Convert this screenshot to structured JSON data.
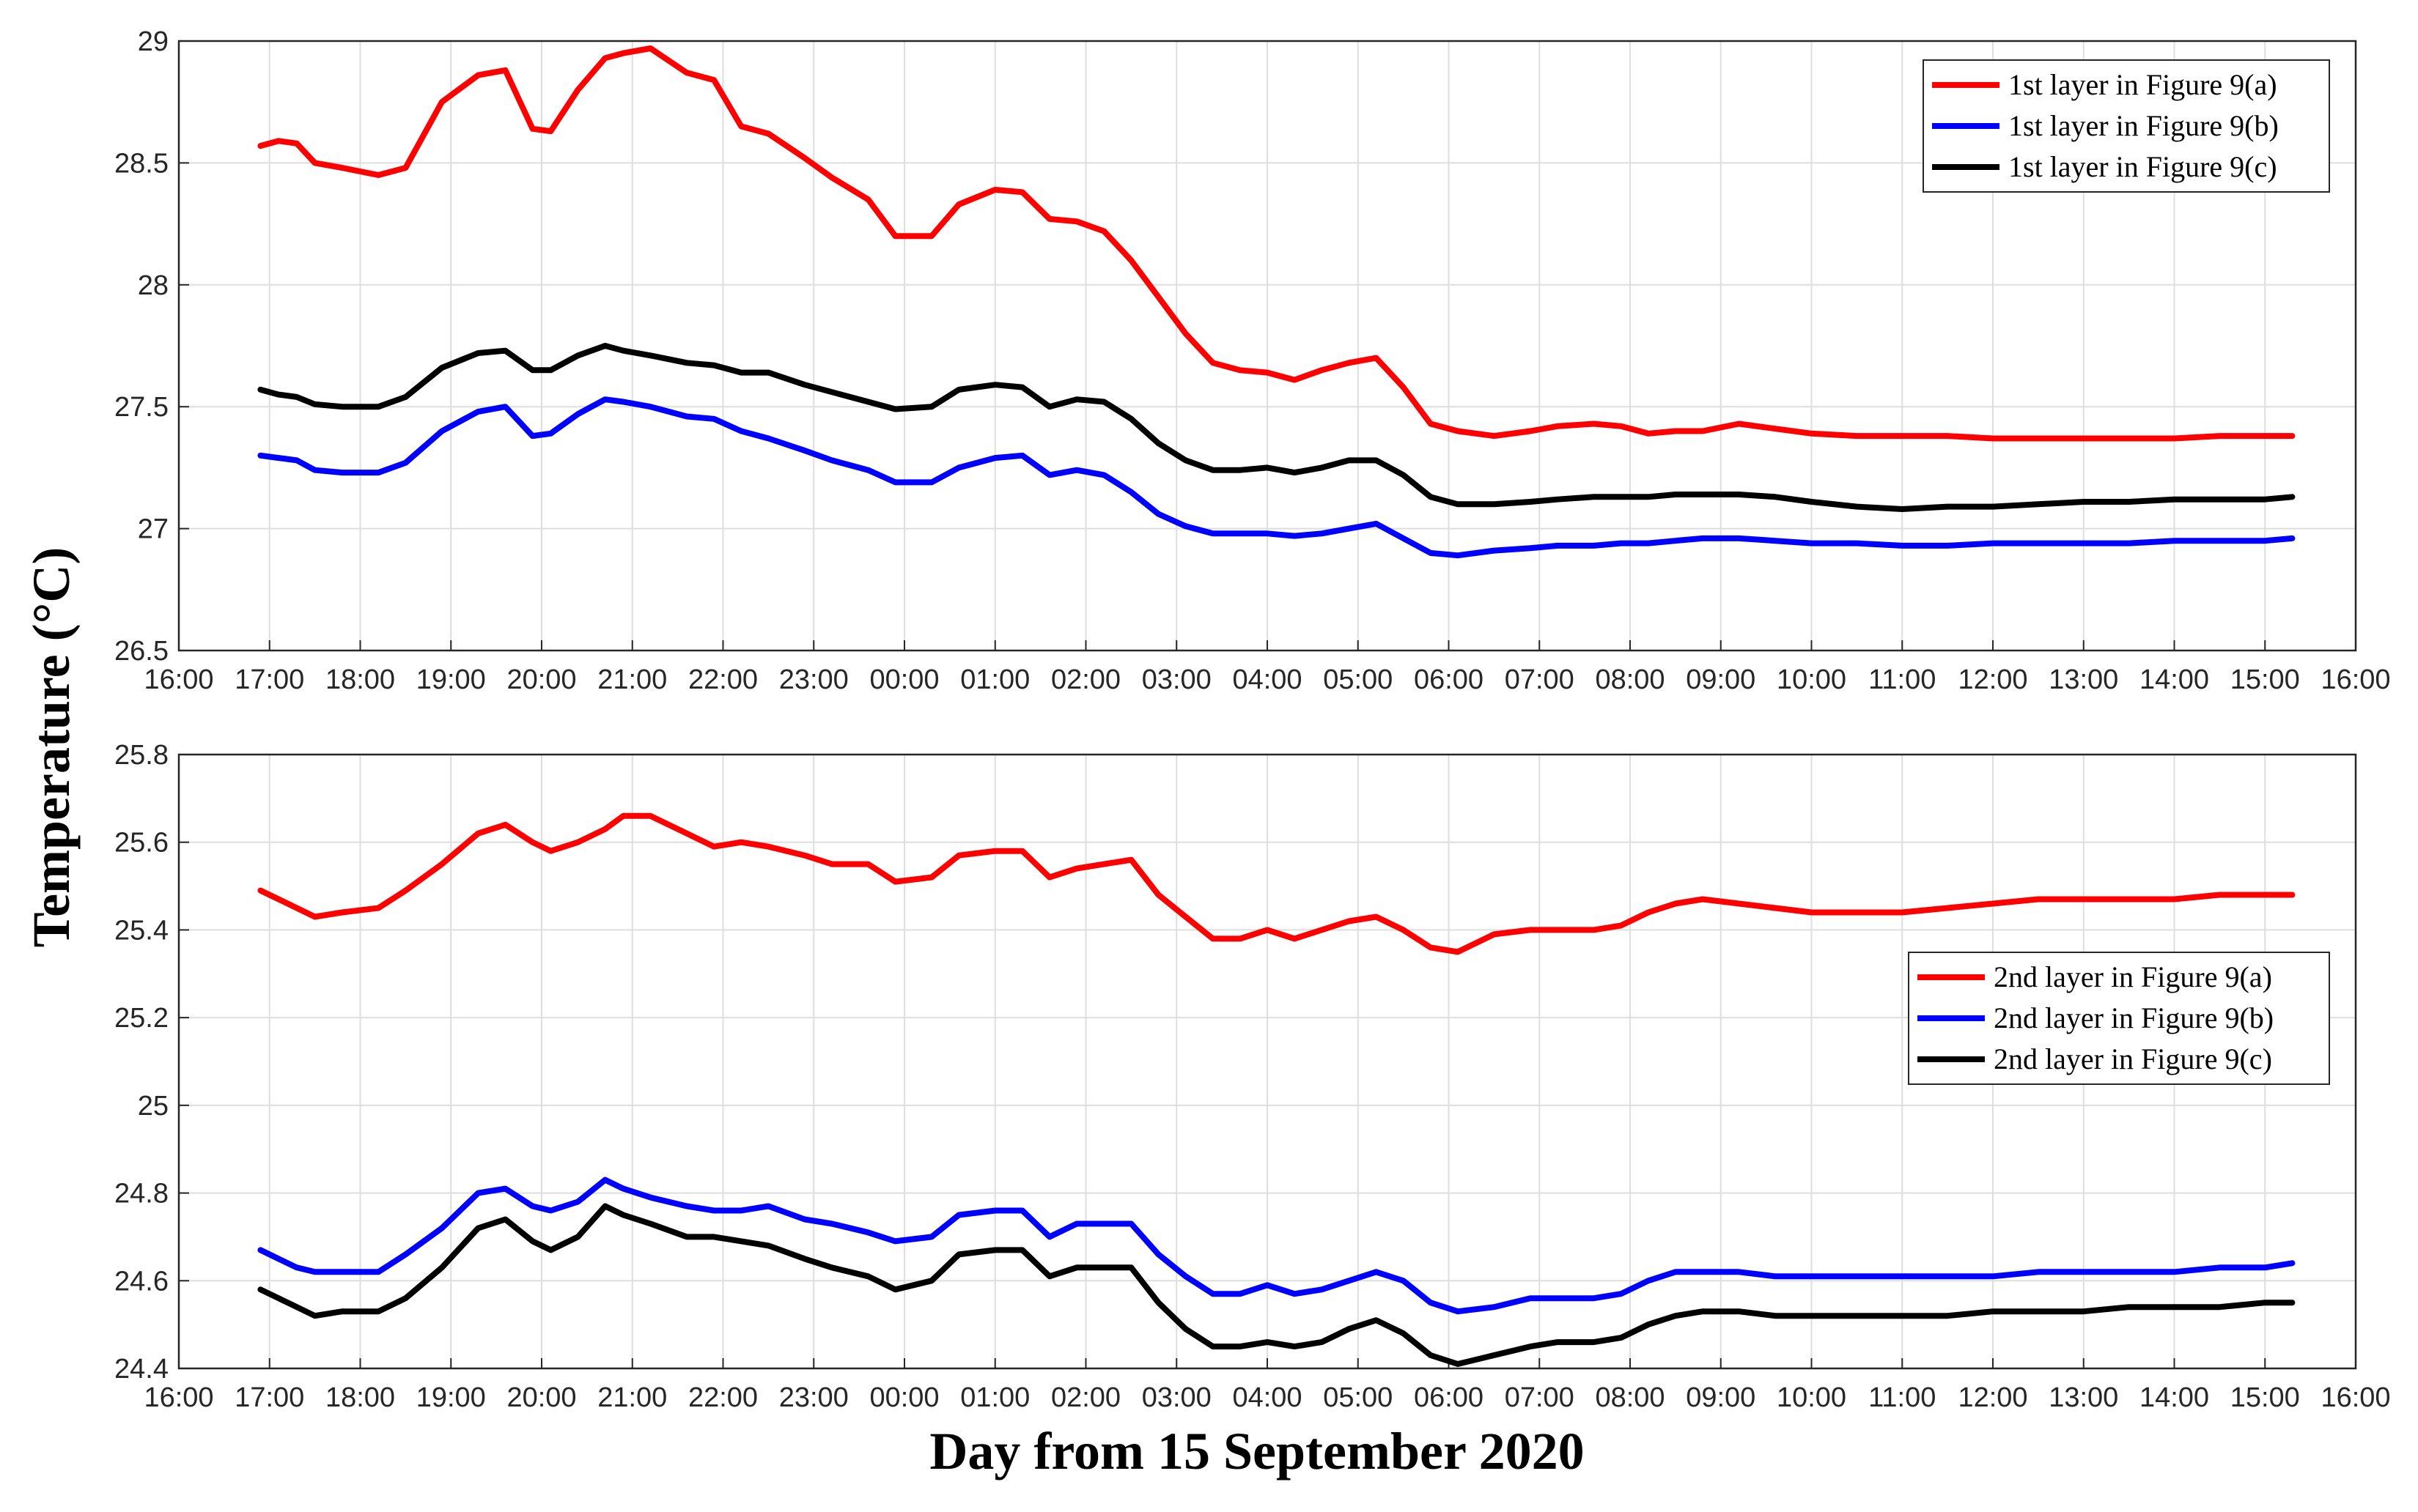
{
  "ylabel": "Temperature (°C)",
  "xlabel": "Day from 15 September 2020",
  "chart_data": [
    {
      "type": "line",
      "name": "top-panel",
      "ylim": [
        26.5,
        29
      ],
      "yticks": [
        26.5,
        27,
        27.5,
        28,
        28.5,
        29
      ],
      "ytick_labels": [
        "26.5",
        "27",
        "27.5",
        "28",
        "28.5",
        "29"
      ],
      "xlim": [
        0,
        24
      ],
      "xtick_labels": [
        "16:00",
        "17:00",
        "18:00",
        "19:00",
        "20:00",
        "21:00",
        "22:00",
        "23:00",
        "00:00",
        "01:00",
        "02:00",
        "03:00",
        "04:00",
        "05:00",
        "06:00",
        "07:00",
        "08:00",
        "09:00",
        "10:00",
        "11:00",
        "12:00",
        "13:00",
        "14:00",
        "15:00",
        "16:00"
      ],
      "grid": true,
      "legend_position": "top-right",
      "x": [
        0.9,
        1.1,
        1.3,
        1.5,
        1.8,
        2.2,
        2.5,
        2.9,
        3.3,
        3.6,
        3.9,
        4.1,
        4.4,
        4.7,
        4.9,
        5.2,
        5.6,
        5.9,
        6.2,
        6.5,
        6.9,
        7.2,
        7.6,
        7.9,
        8.3,
        8.6,
        9.0,
        9.3,
        9.6,
        9.9,
        10.2,
        10.5,
        10.8,
        11.1,
        11.4,
        11.7,
        12.0,
        12.3,
        12.6,
        12.9,
        13.2,
        13.5,
        13.8,
        14.1,
        14.5,
        14.9,
        15.2,
        15.6,
        15.9,
        16.2,
        16.5,
        16.8,
        17.2,
        17.6,
        18.0,
        18.5,
        19.0,
        19.5,
        20.0,
        20.5,
        21.0,
        21.5,
        22.0,
        22.5,
        23.0,
        23.3
      ],
      "series": [
        {
          "name": "1st layer in Figure 9(a)",
          "color": "#ff0000",
          "values": [
            28.57,
            28.59,
            28.58,
            28.5,
            28.48,
            28.45,
            28.48,
            28.75,
            28.86,
            28.88,
            28.64,
            28.63,
            28.8,
            28.93,
            28.95,
            28.97,
            28.87,
            28.84,
            28.65,
            28.62,
            28.52,
            28.44,
            28.35,
            28.2,
            28.2,
            28.33,
            28.39,
            28.38,
            28.27,
            28.26,
            28.22,
            28.1,
            27.95,
            27.8,
            27.68,
            27.65,
            27.64,
            27.61,
            27.65,
            27.68,
            27.7,
            27.58,
            27.43,
            27.4,
            27.38,
            27.4,
            27.42,
            27.43,
            27.42,
            27.39,
            27.4,
            27.4,
            27.43,
            27.41,
            27.39,
            27.38,
            27.38,
            27.38,
            27.37,
            27.37,
            27.37,
            27.37,
            27.37,
            27.38,
            27.38,
            27.38
          ]
        },
        {
          "name": "1st layer in Figure 9(b)",
          "color": "#0000ff",
          "values": [
            27.3,
            27.29,
            27.28,
            27.24,
            27.23,
            27.23,
            27.27,
            27.4,
            27.48,
            27.5,
            27.38,
            27.39,
            27.47,
            27.53,
            27.52,
            27.5,
            27.46,
            27.45,
            27.4,
            27.37,
            27.32,
            27.28,
            27.24,
            27.19,
            27.19,
            27.25,
            27.29,
            27.3,
            27.22,
            27.24,
            27.22,
            27.15,
            27.06,
            27.01,
            26.98,
            26.98,
            26.98,
            26.97,
            26.98,
            27.0,
            27.02,
            26.96,
            26.9,
            26.89,
            26.91,
            26.92,
            26.93,
            26.93,
            26.94,
            26.94,
            26.95,
            26.96,
            26.96,
            26.95,
            26.94,
            26.94,
            26.93,
            26.93,
            26.94,
            26.94,
            26.94,
            26.94,
            26.95,
            26.95,
            26.95,
            26.96
          ]
        },
        {
          "name": "1st layer in Figure 9(c)",
          "color": "#000000",
          "values": [
            27.57,
            27.55,
            27.54,
            27.51,
            27.5,
            27.5,
            27.54,
            27.66,
            27.72,
            27.73,
            27.65,
            27.65,
            27.71,
            27.75,
            27.73,
            27.71,
            27.68,
            27.67,
            27.64,
            27.64,
            27.59,
            27.56,
            27.52,
            27.49,
            27.5,
            27.57,
            27.59,
            27.58,
            27.5,
            27.53,
            27.52,
            27.45,
            27.35,
            27.28,
            27.24,
            27.24,
            27.25,
            27.23,
            27.25,
            27.28,
            27.28,
            27.22,
            27.13,
            27.1,
            27.1,
            27.11,
            27.12,
            27.13,
            27.13,
            27.13,
            27.14,
            27.14,
            27.14,
            27.13,
            27.11,
            27.09,
            27.08,
            27.09,
            27.09,
            27.1,
            27.11,
            27.11,
            27.12,
            27.12,
            27.12,
            27.13
          ]
        }
      ]
    },
    {
      "type": "line",
      "name": "bottom-panel",
      "ylim": [
        24.4,
        25.8
      ],
      "yticks": [
        24.4,
        24.6,
        24.8,
        25,
        25.2,
        25.4,
        25.6,
        25.8
      ],
      "ytick_labels": [
        "24.4",
        "24.6",
        "24.8",
        "25",
        "25.2",
        "25.4",
        "25.6",
        "25.8"
      ],
      "xlim": [
        0,
        24
      ],
      "xtick_labels": [
        "16:00",
        "17:00",
        "18:00",
        "19:00",
        "20:00",
        "21:00",
        "22:00",
        "23:00",
        "00:00",
        "01:00",
        "02:00",
        "03:00",
        "04:00",
        "05:00",
        "06:00",
        "07:00",
        "08:00",
        "09:00",
        "10:00",
        "11:00",
        "12:00",
        "13:00",
        "14:00",
        "15:00",
        "16:00"
      ],
      "grid": true,
      "legend_position": "right",
      "x": [
        0.9,
        1.1,
        1.3,
        1.5,
        1.8,
        2.2,
        2.5,
        2.9,
        3.3,
        3.6,
        3.9,
        4.1,
        4.4,
        4.7,
        4.9,
        5.2,
        5.6,
        5.9,
        6.2,
        6.5,
        6.9,
        7.2,
        7.6,
        7.9,
        8.3,
        8.6,
        9.0,
        9.3,
        9.6,
        9.9,
        10.2,
        10.5,
        10.8,
        11.1,
        11.4,
        11.7,
        12.0,
        12.3,
        12.6,
        12.9,
        13.2,
        13.5,
        13.8,
        14.1,
        14.5,
        14.9,
        15.2,
        15.6,
        15.9,
        16.2,
        16.5,
        16.8,
        17.2,
        17.6,
        18.0,
        18.5,
        19.0,
        19.5,
        20.0,
        20.5,
        21.0,
        21.5,
        22.0,
        22.5,
        23.0,
        23.3
      ],
      "series": [
        {
          "name": "2nd layer in Figure 9(a)",
          "color": "#ff0000",
          "values": [
            25.49,
            25.47,
            25.45,
            25.43,
            25.44,
            25.45,
            25.49,
            25.55,
            25.62,
            25.64,
            25.6,
            25.58,
            25.6,
            25.63,
            25.66,
            25.66,
            25.62,
            25.59,
            25.6,
            25.59,
            25.57,
            25.55,
            25.55,
            25.51,
            25.52,
            25.57,
            25.58,
            25.58,
            25.52,
            25.54,
            25.55,
            25.56,
            25.48,
            25.43,
            25.38,
            25.38,
            25.4,
            25.38,
            25.4,
            25.42,
            25.43,
            25.4,
            25.36,
            25.35,
            25.39,
            25.4,
            25.4,
            25.4,
            25.41,
            25.44,
            25.46,
            25.47,
            25.46,
            25.45,
            25.44,
            25.44,
            25.44,
            25.45,
            25.46,
            25.47,
            25.47,
            25.47,
            25.47,
            25.48,
            25.48,
            25.48
          ]
        },
        {
          "name": "2nd layer in Figure 9(b)",
          "color": "#0000ff",
          "values": [
            24.67,
            24.65,
            24.63,
            24.62,
            24.62,
            24.62,
            24.66,
            24.72,
            24.8,
            24.81,
            24.77,
            24.76,
            24.78,
            24.83,
            24.81,
            24.79,
            24.77,
            24.76,
            24.76,
            24.77,
            24.74,
            24.73,
            24.71,
            24.69,
            24.7,
            24.75,
            24.76,
            24.76,
            24.7,
            24.73,
            24.73,
            24.73,
            24.66,
            24.61,
            24.57,
            24.57,
            24.59,
            24.57,
            24.58,
            24.6,
            24.62,
            24.6,
            24.55,
            24.53,
            24.54,
            24.56,
            24.56,
            24.56,
            24.57,
            24.6,
            24.62,
            24.62,
            24.62,
            24.61,
            24.61,
            24.61,
            24.61,
            24.61,
            24.61,
            24.62,
            24.62,
            24.62,
            24.62,
            24.63,
            24.63,
            24.64
          ]
        },
        {
          "name": "2nd layer in Figure 9(c)",
          "color": "#000000",
          "values": [
            24.58,
            24.56,
            24.54,
            24.52,
            24.53,
            24.53,
            24.56,
            24.63,
            24.72,
            24.74,
            24.69,
            24.67,
            24.7,
            24.77,
            24.75,
            24.73,
            24.7,
            24.7,
            24.69,
            24.68,
            24.65,
            24.63,
            24.61,
            24.58,
            24.6,
            24.66,
            24.67,
            24.67,
            24.61,
            24.63,
            24.63,
            24.63,
            24.55,
            24.49,
            24.45,
            24.45,
            24.46,
            24.45,
            24.46,
            24.49,
            24.51,
            24.48,
            24.43,
            24.41,
            24.43,
            24.45,
            24.46,
            24.46,
            24.47,
            24.5,
            24.52,
            24.53,
            24.53,
            24.52,
            24.52,
            24.52,
            24.52,
            24.52,
            24.53,
            24.53,
            24.53,
            24.54,
            24.54,
            24.54,
            24.55,
            24.55
          ]
        }
      ]
    }
  ]
}
